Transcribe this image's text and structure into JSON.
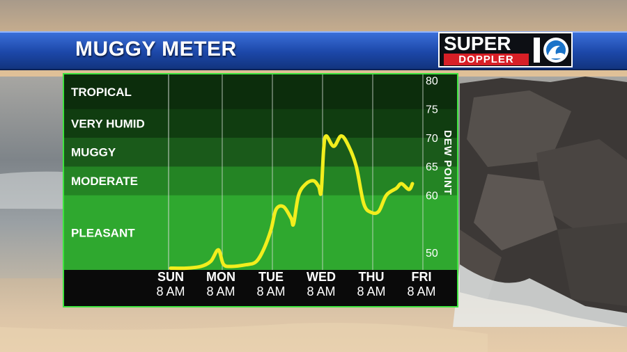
{
  "header": {
    "title": "MUGGY METER"
  },
  "logo": {
    "super": "SUPER",
    "doppler": "DOPPLER"
  },
  "colors": {
    "line": "#f2ee1d",
    "band_tropical": "#0c2d0c",
    "band_very_humid": "#103d10",
    "band_muggy": "#1a5a1a",
    "band_moderate": "#248424",
    "band_pleasant": "#2fa82f",
    "border": "#3fe43f",
    "title_bar": "#1c47a8"
  },
  "chart_data": {
    "type": "line",
    "title": "MUGGY METER",
    "ylabel": "DEW POINT",
    "ylim": [
      47,
      81
    ],
    "yticks": [
      "80",
      "75",
      "70",
      "65",
      "60",
      "50"
    ],
    "bands": [
      {
        "label": "TROPICAL",
        "min": 75,
        "max": 81
      },
      {
        "label": "VERY HUMID",
        "min": 70,
        "max": 75
      },
      {
        "label": "MUGGY",
        "min": 65,
        "max": 70
      },
      {
        "label": "MODERATE",
        "min": 60,
        "max": 65
      },
      {
        "label": "PLEASANT",
        "min": 47,
        "max": 60
      }
    ],
    "categories": [
      {
        "day": "SUN",
        "time": "8 AM"
      },
      {
        "day": "MON",
        "time": "8 AM"
      },
      {
        "day": "TUE",
        "time": "8 AM"
      },
      {
        "day": "WED",
        "time": "8 AM"
      },
      {
        "day": "THU",
        "time": "8 AM"
      },
      {
        "day": "FRI",
        "time": "8 AM"
      }
    ],
    "series": [
      {
        "values": [
          [
            0.0,
            47.3
          ],
          [
            0.3,
            47.3
          ],
          [
            0.6,
            47.6
          ],
          [
            0.8,
            48.5
          ],
          [
            0.95,
            50.5
          ],
          [
            1.05,
            48.0
          ],
          [
            1.2,
            47.6
          ],
          [
            1.5,
            47.9
          ],
          [
            1.7,
            48.4
          ],
          [
            1.85,
            50.5
          ],
          [
            2.0,
            54.0
          ],
          [
            2.1,
            57.5
          ],
          [
            2.25,
            58.0
          ],
          [
            2.4,
            56.0
          ],
          [
            2.45,
            55.0
          ],
          [
            2.55,
            60.0
          ],
          [
            2.7,
            62.0
          ],
          [
            2.85,
            62.5
          ],
          [
            2.95,
            61.5
          ],
          [
            3.0,
            60.5
          ],
          [
            3.05,
            68.0
          ],
          [
            3.1,
            70.3
          ],
          [
            3.25,
            68.5
          ],
          [
            3.4,
            70.3
          ],
          [
            3.55,
            68.5
          ],
          [
            3.7,
            65.0
          ],
          [
            3.85,
            58.5
          ],
          [
            4.0,
            57.0
          ],
          [
            4.15,
            57.2
          ],
          [
            4.3,
            60.0
          ],
          [
            4.5,
            61.2
          ],
          [
            4.6,
            62.0
          ],
          [
            4.75,
            61.0
          ],
          [
            4.82,
            62.0
          ]
        ]
      }
    ],
    "grid": true
  }
}
